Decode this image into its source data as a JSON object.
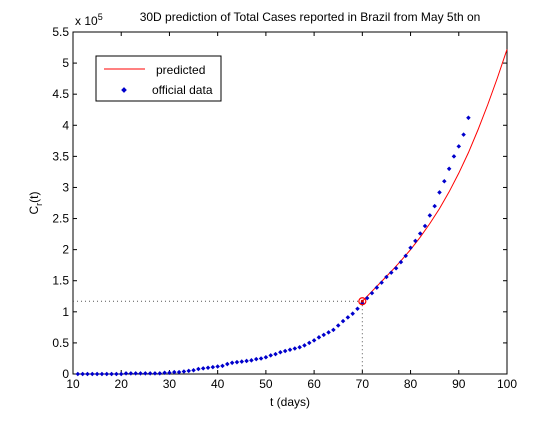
{
  "chart_data": {
    "type": "line",
    "title": "30D prediction of Total Cases reported in Brazil from May 5th on",
    "xlabel": "t (days)",
    "ylabel_main": "C",
    "ylabel_sub": "r",
    "ylabel_tail": "(t)",
    "y_multiplier_base": "x 10",
    "y_multiplier_exp": "5",
    "xlim": [
      10,
      100
    ],
    "ylim": [
      0,
      5.5
    ],
    "xticks": [
      10,
      20,
      30,
      40,
      50,
      60,
      70,
      80,
      90,
      100
    ],
    "yticks": [
      0,
      0.5,
      1,
      1.5,
      2,
      2.5,
      3,
      3.5,
      4,
      4.5,
      5,
      5.5
    ],
    "xtick_labels": [
      "10",
      "20",
      "30",
      "40",
      "50",
      "60",
      "70",
      "80",
      "90",
      "100"
    ],
    "ytick_labels": [
      "0",
      "0.5",
      "1",
      "1.5",
      "2",
      "2.5",
      "3",
      "3.5",
      "4",
      "4.5",
      "5",
      "5.5"
    ],
    "grid": false,
    "legend_position": "top-left",
    "marker": {
      "x": 70,
      "y": 1.17
    },
    "series": [
      {
        "name": "predicted",
        "kind": "line",
        "color": "#ff0000",
        "x": [
          70,
          72,
          74,
          76,
          78,
          80,
          82,
          84,
          86,
          88,
          90,
          92,
          94,
          96,
          98,
          100
        ],
        "y": [
          1.17,
          1.33,
          1.49,
          1.65,
          1.82,
          2.0,
          2.2,
          2.42,
          2.66,
          2.93,
          3.23,
          3.56,
          3.93,
          4.33,
          4.76,
          5.22
        ]
      },
      {
        "name": "official data",
        "kind": "points",
        "color": "#0000cc",
        "x": [
          11,
          12,
          13,
          14,
          15,
          16,
          17,
          18,
          19,
          20,
          21,
          22,
          23,
          24,
          25,
          26,
          27,
          28,
          29,
          30,
          31,
          32,
          33,
          34,
          35,
          36,
          37,
          38,
          39,
          40,
          41,
          42,
          43,
          44,
          45,
          46,
          47,
          48,
          49,
          50,
          51,
          52,
          53,
          54,
          55,
          56,
          57,
          58,
          59,
          60,
          61,
          62,
          63,
          64,
          65,
          66,
          67,
          68,
          69,
          70,
          71,
          72,
          73,
          74,
          75,
          76,
          77,
          78,
          79,
          80,
          81,
          82,
          83,
          84,
          85,
          86,
          87,
          88,
          89,
          90,
          91,
          92
        ],
        "y": [
          0.0,
          0.0,
          0.0,
          0.0,
          0.0,
          0.0,
          0.0,
          0.0,
          0.0,
          0.0,
          0.01,
          0.01,
          0.01,
          0.01,
          0.01,
          0.01,
          0.01,
          0.01,
          0.02,
          0.02,
          0.03,
          0.03,
          0.04,
          0.05,
          0.06,
          0.08,
          0.09,
          0.1,
          0.11,
          0.12,
          0.13,
          0.16,
          0.18,
          0.19,
          0.2,
          0.21,
          0.22,
          0.24,
          0.25,
          0.27,
          0.3,
          0.32,
          0.35,
          0.37,
          0.39,
          0.41,
          0.43,
          0.46,
          0.5,
          0.54,
          0.59,
          0.63,
          0.67,
          0.71,
          0.78,
          0.85,
          0.91,
          0.97,
          1.05,
          1.14,
          1.22,
          1.3,
          1.39,
          1.47,
          1.56,
          1.63,
          1.7,
          1.8,
          1.9,
          2.03,
          2.14,
          2.26,
          2.38,
          2.55,
          2.7,
          2.92,
          3.1,
          3.3,
          3.5,
          3.66,
          3.85,
          4.12
        ]
      }
    ]
  }
}
